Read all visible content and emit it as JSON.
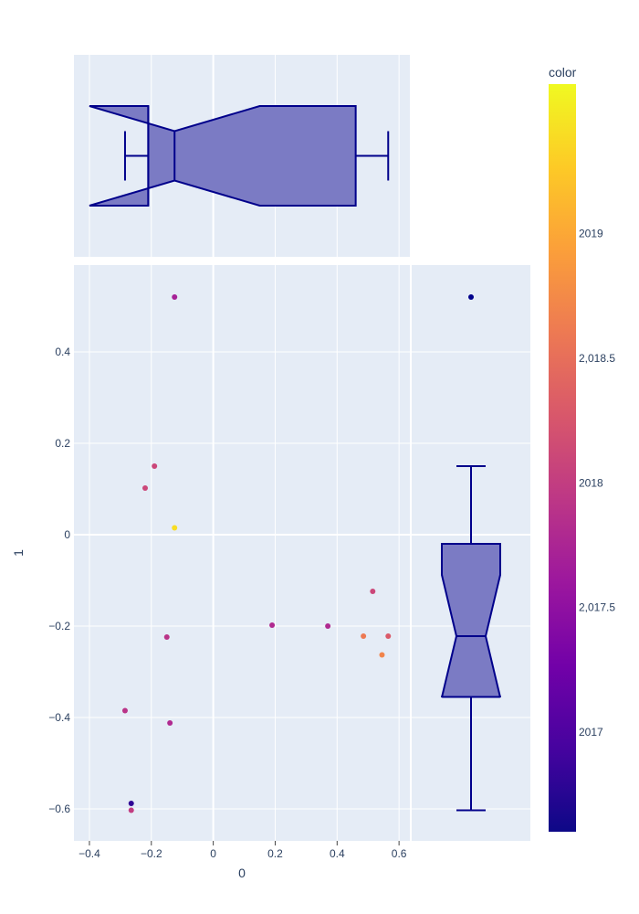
{
  "chart_data": {
    "type": "scatter",
    "xlabel": "0",
    "ylabel": "1",
    "xlim": [
      -0.45,
      0.635
    ],
    "ylim": [
      -0.67,
      0.59
    ],
    "x_ticks": [
      -0.4,
      -0.2,
      0,
      0.2,
      0.4,
      0.6
    ],
    "x_tick_labels": [
      "−0.4",
      "−0.2",
      "0",
      "0.2",
      "0.4",
      "0.6"
    ],
    "y_ticks": [
      -0.6,
      -0.4,
      -0.2,
      0,
      0.2,
      0.4
    ],
    "y_tick_labels": [
      "−0.6",
      "−0.4",
      "−0.2",
      "0",
      "0.2",
      "0.4"
    ],
    "points": [
      {
        "x": -0.125,
        "y": 0.52,
        "color": 2017.7
      },
      {
        "x": -0.19,
        "y": 0.15,
        "color": 2018.1
      },
      {
        "x": -0.22,
        "y": 0.102,
        "color": 2018.1
      },
      {
        "x": -0.125,
        "y": 0.015,
        "color": 2019.4
      },
      {
        "x": 0.515,
        "y": -0.124,
        "color": 2018.1
      },
      {
        "x": 0.19,
        "y": -0.198,
        "color": 2017.8
      },
      {
        "x": 0.37,
        "y": -0.2,
        "color": 2017.8
      },
      {
        "x": 0.485,
        "y": -0.222,
        "color": 2018.6
      },
      {
        "x": 0.565,
        "y": -0.222,
        "color": 2018.3
      },
      {
        "x": -0.15,
        "y": -0.224,
        "color": 2017.9
      },
      {
        "x": 0.545,
        "y": -0.263,
        "color": 2018.7
      },
      {
        "x": -0.285,
        "y": -0.385,
        "color": 2017.9
      },
      {
        "x": -0.14,
        "y": -0.412,
        "color": 2017.8
      },
      {
        "x": -0.265,
        "y": -0.588,
        "color": 2016.8
      },
      {
        "x": -0.265,
        "y": -0.603,
        "color": 2018.0
      }
    ],
    "marginal_x_box": {
      "lowerfence": -0.285,
      "q1": -0.21,
      "median": -0.125,
      "q3": 0.46,
      "upperfence": 0.565,
      "notch_low": -0.4,
      "notch_high": 0.15
    },
    "marginal_y_box": {
      "lowerfence": -0.603,
      "q1": -0.355,
      "median": -0.222,
      "q3": -0.02,
      "upperfence": 0.15,
      "notch_low": -0.088,
      "notch_high": -0.356,
      "outliers": [
        0.52
      ]
    },
    "colorbar": {
      "title": "color",
      "range": [
        2016.6,
        2019.6
      ],
      "ticks": [
        2017,
        2017.5,
        2018,
        2018.5,
        2019
      ],
      "tick_labels": [
        "2017",
        "2,017.5",
        "2018",
        "2,018.5",
        "2019"
      ],
      "colorscale": [
        "#0d0887",
        "#46039f",
        "#7201a8",
        "#9c179e",
        "#bd3786",
        "#d8576b",
        "#ed7953",
        "#fb9f3a",
        "#fdca26",
        "#f0f921"
      ]
    },
    "colors": {
      "plot_bg": "#e5ecf6",
      "box_fill": "#7b7bc4",
      "box_line": "#00008b",
      "grid": "#ffffff"
    }
  }
}
